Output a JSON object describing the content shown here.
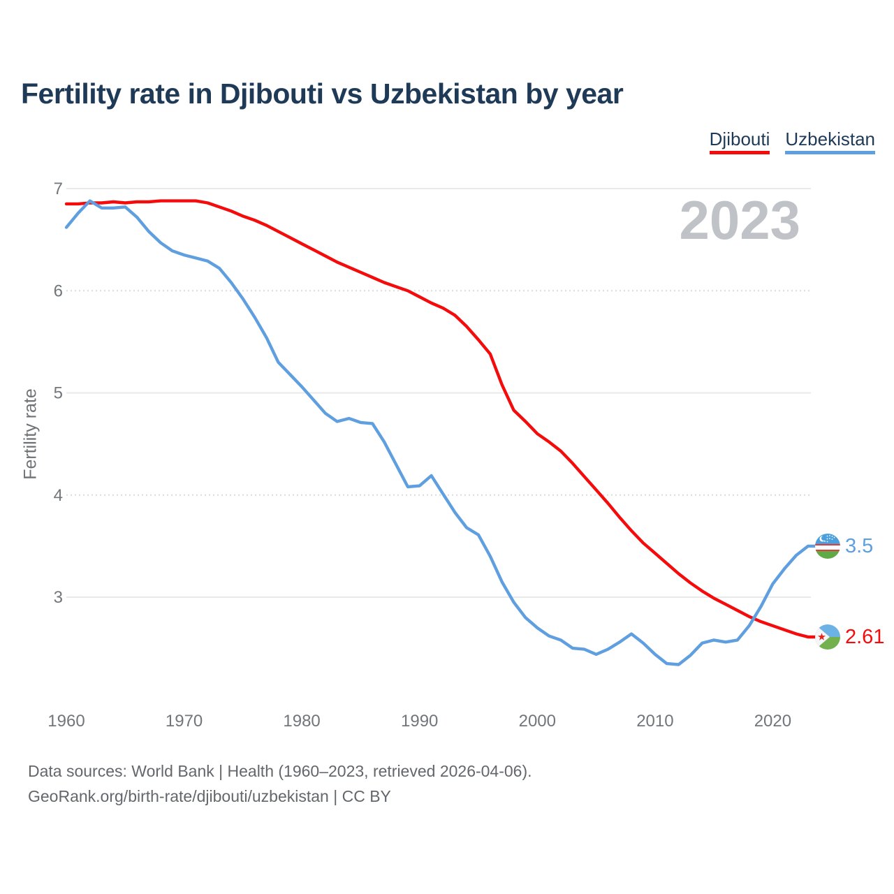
{
  "title": "Fertility rate in Djibouti vs Uzbekistan by year",
  "legend": {
    "items": [
      {
        "label": "Djibouti",
        "color": "#f40b0b"
      },
      {
        "label": "Uzbekistan",
        "color": "#5f9fe0"
      }
    ]
  },
  "watermark": "2023",
  "y_axis": {
    "title": "Fertility rate",
    "ticks": [
      "7",
      "6",
      "5",
      "4",
      "3"
    ]
  },
  "x_axis": {
    "ticks": [
      "1960",
      "1970",
      "1980",
      "1990",
      "2000",
      "2010",
      "2020"
    ]
  },
  "end_labels": {
    "uzbekistan": {
      "series": "Uzbekistan",
      "value": "3.5",
      "flag": "uzbekistan-flag"
    },
    "djibouti": {
      "series": "Djibouti",
      "value": "2.61",
      "flag": "djibouti-flag"
    }
  },
  "source": {
    "line1": "Data sources: World Bank | Health (1960–2023, retrieved 2026-04-06).",
    "line2": "GeoRank.org/birth-rate/djibouti/uzbekistan | CC BY"
  },
  "chart_data": {
    "type": "line",
    "title": "Fertility rate in Djibouti vs Uzbekistan by year",
    "xlabel": "",
    "ylabel": "Fertility rate",
    "xlim": [
      1960,
      2023
    ],
    "ylim": [
      2.1,
      7.05
    ],
    "yticks": [
      7,
      6,
      5,
      4,
      3
    ],
    "xticks": [
      1960,
      1970,
      1980,
      1990,
      2000,
      2010,
      2020
    ],
    "grid": "horizontal",
    "legend_position": "top-right",
    "x": [
      1960,
      1961,
      1962,
      1963,
      1964,
      1965,
      1966,
      1967,
      1968,
      1969,
      1970,
      1971,
      1972,
      1973,
      1974,
      1975,
      1976,
      1977,
      1978,
      1979,
      1980,
      1981,
      1982,
      1983,
      1984,
      1985,
      1986,
      1987,
      1988,
      1989,
      1990,
      1991,
      1992,
      1993,
      1994,
      1995,
      1996,
      1997,
      1998,
      1999,
      2000,
      2001,
      2002,
      2003,
      2004,
      2005,
      2006,
      2007,
      2008,
      2009,
      2010,
      2011,
      2012,
      2013,
      2014,
      2015,
      2016,
      2017,
      2018,
      2019,
      2020,
      2021,
      2022,
      2023
    ],
    "series": [
      {
        "name": "Djibouti",
        "color": "#f40b0b",
        "end_label": "2.61",
        "values": [
          6.85,
          6.85,
          6.86,
          6.86,
          6.87,
          6.86,
          6.87,
          6.87,
          6.88,
          6.88,
          6.88,
          6.88,
          6.86,
          6.82,
          6.78,
          6.73,
          6.69,
          6.64,
          6.58,
          6.52,
          6.46,
          6.4,
          6.34,
          6.28,
          6.23,
          6.18,
          6.13,
          6.08,
          6.04,
          6.0,
          5.94,
          5.88,
          5.83,
          5.76,
          5.65,
          5.52,
          5.38,
          5.08,
          4.83,
          4.72,
          4.6,
          4.52,
          4.43,
          4.31,
          4.18,
          4.05,
          3.92,
          3.78,
          3.65,
          3.53,
          3.43,
          3.33,
          3.23,
          3.14,
          3.06,
          2.99,
          2.93,
          2.87,
          2.81,
          2.76,
          2.72,
          2.68,
          2.64,
          2.61
        ]
      },
      {
        "name": "Uzbekistan",
        "color": "#5f9fe0",
        "end_label": "3.5",
        "values": [
          6.62,
          6.76,
          6.88,
          6.81,
          6.81,
          6.82,
          6.72,
          6.58,
          6.47,
          6.39,
          6.35,
          6.32,
          6.29,
          6.22,
          6.08,
          5.92,
          5.74,
          5.54,
          5.3,
          5.18,
          5.06,
          4.93,
          4.8,
          4.72,
          4.75,
          4.71,
          4.7,
          4.52,
          4.3,
          4.08,
          4.09,
          4.19,
          4.01,
          3.83,
          3.68,
          3.61,
          3.4,
          3.15,
          2.95,
          2.8,
          2.7,
          2.62,
          2.58,
          2.5,
          2.49,
          2.44,
          2.49,
          2.56,
          2.64,
          2.55,
          2.44,
          2.35,
          2.34,
          2.43,
          2.55,
          2.58,
          2.56,
          2.58,
          2.72,
          2.91,
          3.13,
          3.28,
          3.41,
          3.5
        ]
      }
    ]
  }
}
